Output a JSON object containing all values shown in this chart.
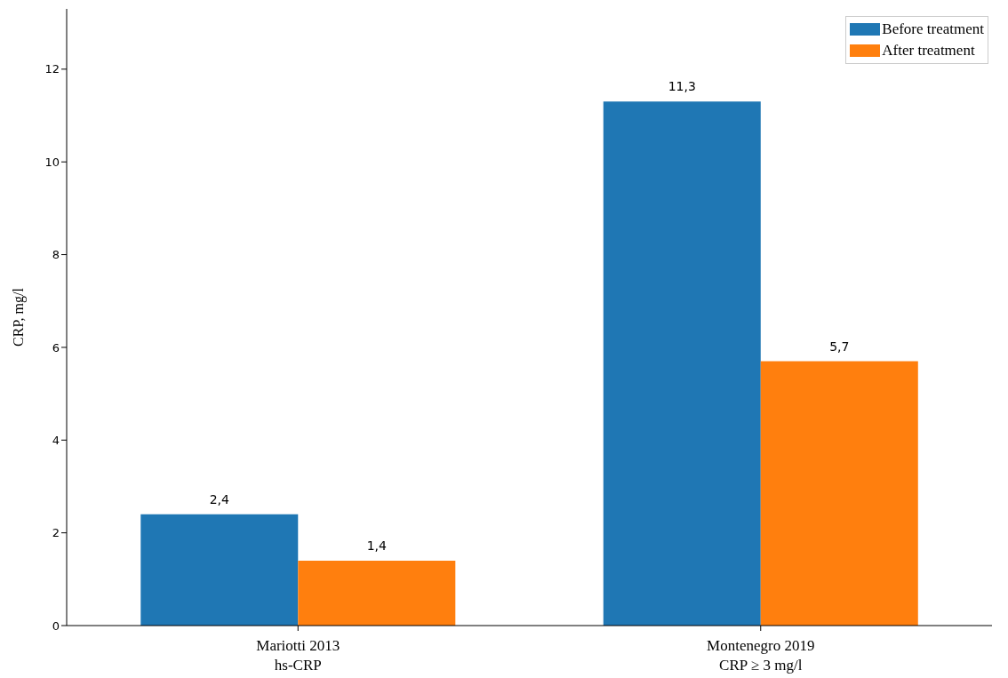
{
  "chart_data": {
    "type": "bar",
    "ylabel": "CRP, mg/l",
    "categories": [
      "Mariotti 2013\nhs-CRP",
      "Montenegro 2019\nCRP  ≥ 3 mg/l"
    ],
    "series": [
      {
        "name": "Before treatment",
        "color": "#1f77b4",
        "values": [
          2.4,
          11.3
        ],
        "value_labels": [
          "2,4",
          "11,3"
        ]
      },
      {
        "name": "After treatment",
        "color": "#ff7f0e",
        "values": [
          1.4,
          5.7
        ],
        "value_labels": [
          "1,4",
          "5,7"
        ]
      }
    ],
    "ylim": [
      0,
      13.3
    ],
    "yticks": [
      0,
      2,
      4,
      6,
      8,
      10,
      12
    ],
    "grid": false,
    "legend": "top right"
  }
}
